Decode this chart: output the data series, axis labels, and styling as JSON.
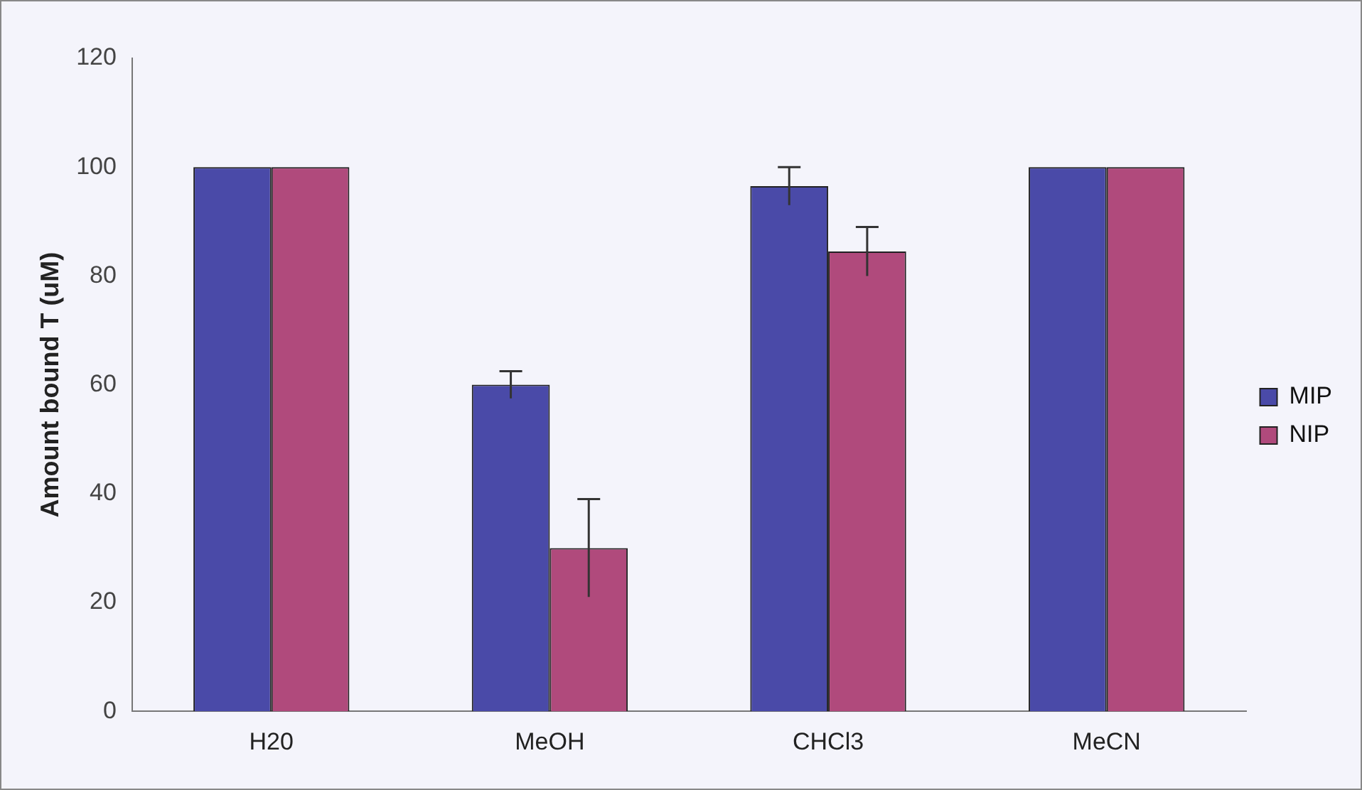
{
  "chart_data": {
    "type": "bar",
    "ylabel": "Amount bound T (uM)",
    "categories": [
      "H20",
      "MeOH",
      "CHCl3",
      "MeCN"
    ],
    "series": [
      {
        "name": "MIP",
        "color": "#4a4aa8",
        "values": [
          100,
          60,
          96.5,
          100
        ],
        "errors": [
          null,
          2.5,
          3.5,
          null
        ]
      },
      {
        "name": "NIP",
        "color": "#b04a7c",
        "values": [
          100,
          30,
          84.5,
          100
        ],
        "errors": [
          null,
          9,
          4.5,
          null
        ]
      }
    ],
    "ylim": [
      0,
      120
    ],
    "yticks": [
      0,
      20,
      40,
      60,
      80,
      100,
      120
    ],
    "grid": false,
    "legend": "right"
  }
}
